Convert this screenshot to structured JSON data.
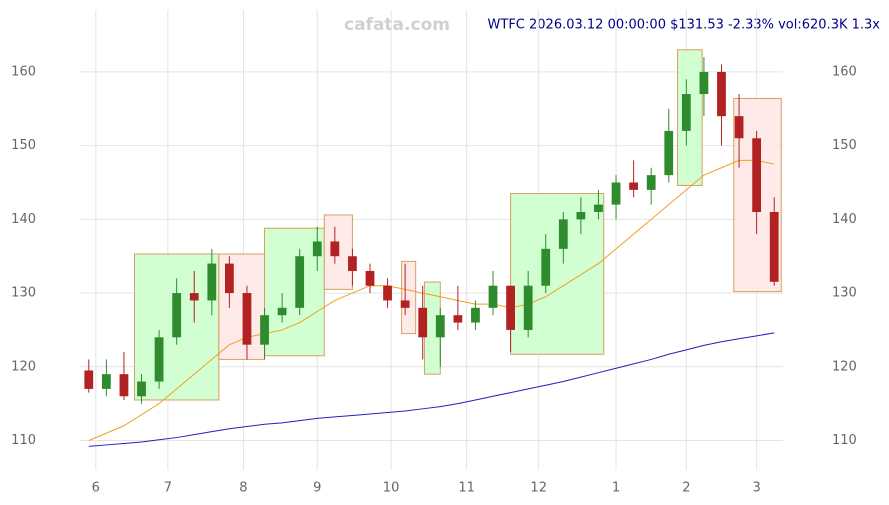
{
  "chart_data": {
    "type": "candlestick",
    "watermark": "cafata.com",
    "title": "WTFC 2026.03.12 00:00:00 $131.53 -2.33% vol:620.3K 1.3x",
    "xlim": [
      -0.5,
      39.5
    ],
    "xticks": [
      {
        "value": 0.4,
        "label": "6"
      },
      {
        "value": 4.5,
        "label": "7"
      },
      {
        "value": 8.8,
        "label": "8"
      },
      {
        "value": 13,
        "label": "9"
      },
      {
        "value": 17.2,
        "label": "10"
      },
      {
        "value": 21.5,
        "label": "11"
      },
      {
        "value": 25.6,
        "label": "12"
      },
      {
        "value": 30,
        "label": "1"
      },
      {
        "value": 34,
        "label": "2"
      },
      {
        "value": 38,
        "label": "3"
      }
    ],
    "ylim": [
      106,
      168.4
    ],
    "yticks": [
      110,
      120,
      130,
      140,
      150,
      160
    ],
    "grid": true,
    "up_color": "#2e8b2e",
    "down_color": "#b22222",
    "open": [
      119.5,
      117,
      119,
      116,
      118,
      124,
      130,
      129,
      134,
      130,
      123,
      127,
      128,
      135,
      137,
      135,
      133,
      131,
      129,
      128,
      124,
      127,
      126,
      128,
      131,
      125,
      131,
      136,
      140,
      141,
      142,
      145,
      144,
      146,
      152,
      157,
      160,
      154,
      151,
      141
    ],
    "high": [
      121,
      121,
      122,
      119,
      125,
      132,
      133,
      136,
      135,
      131,
      128,
      130,
      136,
      139,
      139,
      136,
      134,
      132,
      134,
      131,
      128,
      131,
      129,
      133,
      131,
      133,
      138,
      141,
      143,
      144,
      146,
      148,
      147,
      155,
      159,
      162,
      161,
      157,
      152,
      143
    ],
    "low": [
      116.5,
      116,
      115.5,
      115,
      117,
      123,
      126,
      127,
      128,
      121,
      121,
      126,
      127,
      133,
      134,
      131,
      130,
      128,
      127,
      121,
      120,
      125,
      125,
      127,
      122,
      124,
      130,
      134,
      138,
      140,
      140,
      143,
      142,
      145,
      150,
      154,
      150,
      147,
      138,
      131
    ],
    "close": [
      117,
      119,
      116,
      118,
      124,
      130,
      129,
      134,
      130,
      123,
      127,
      128,
      135,
      137,
      135,
      133,
      131,
      129,
      128,
      124,
      127,
      126,
      128,
      131,
      125,
      131,
      136,
      140,
      141,
      142,
      145,
      144,
      146,
      152,
      157,
      160,
      154,
      151,
      141,
      131.53
    ],
    "lines": [
      {
        "color": "#f0a020",
        "values": [
          110,
          111,
          112,
          113.5,
          115,
          117,
          119,
          121,
          123,
          124,
          124.5,
          125,
          126,
          127.5,
          129,
          130,
          131,
          131,
          130.5,
          130,
          129.5,
          129,
          128.5,
          128.5,
          128,
          128.5,
          129.5,
          131,
          132.5,
          134,
          136,
          138,
          140,
          142,
          144,
          146,
          147,
          148,
          148,
          147.5
        ]
      },
      {
        "color": "#2020c0",
        "values": [
          109.2,
          109.4,
          109.6,
          109.8,
          110.1,
          110.4,
          110.8,
          111.2,
          111.6,
          111.9,
          112.2,
          112.4,
          112.7,
          113,
          113.2,
          113.4,
          113.6,
          113.8,
          114,
          114.3,
          114.6,
          115,
          115.5,
          116,
          116.5,
          117,
          117.5,
          118,
          118.6,
          119.2,
          119.8,
          120.4,
          121,
          121.7,
          122.3,
          122.9,
          123.4,
          123.8,
          124.2,
          124.6
        ]
      }
    ],
    "boxes": [
      {
        "x": [
          2.6,
          7.4
        ],
        "y": [
          115.5,
          135.3
        ],
        "color": "#ccffcc"
      },
      {
        "x": [
          7.4,
          10
        ],
        "y": [
          121,
          135.3
        ],
        "color": "#ffe8e8"
      },
      {
        "x": [
          10,
          13.4
        ],
        "y": [
          121.5,
          138.8
        ],
        "color": "#ccffcc"
      },
      {
        "x": [
          13.4,
          15
        ],
        "y": [
          130.5,
          140.6
        ],
        "color": "#ffe8e8"
      },
      {
        "x": [
          17.8,
          18.6
        ],
        "y": [
          124.5,
          134.3
        ],
        "color": "#ffe8e8"
      },
      {
        "x": [
          19.1,
          20
        ],
        "y": [
          119,
          131.5
        ],
        "color": "#ccffcc"
      },
      {
        "x": [
          24,
          29.3
        ],
        "y": [
          121.7,
          143.5
        ],
        "color": "#ccffcc"
      },
      {
        "x": [
          33.5,
          34.9
        ],
        "y": [
          144.6,
          163
        ],
        "color": "#ccffcc"
      },
      {
        "x": [
          36.7,
          39.4
        ],
        "y": [
          130.2,
          156.4
        ],
        "color": "#ffe8e8"
      }
    ]
  }
}
